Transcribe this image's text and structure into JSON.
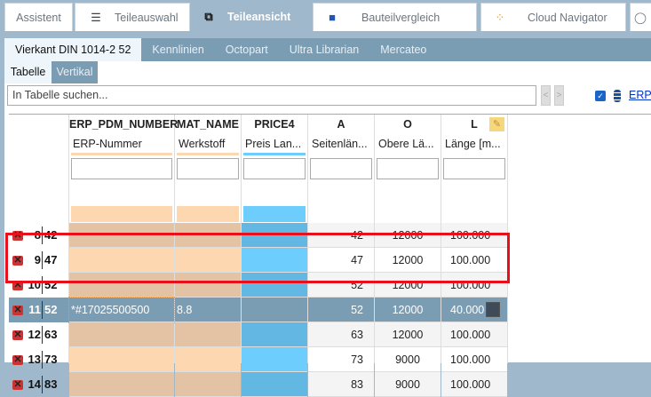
{
  "tabs": [
    {
      "label": "Assistent",
      "icon": ""
    },
    {
      "label": "Teileauswahl",
      "icon": "stack-icon"
    },
    {
      "label": "Teileansicht",
      "icon": "cubes-icon",
      "active": true
    },
    {
      "label": "Bauteilvergleich",
      "icon": "compare-icon"
    },
    {
      "label": "Cloud Navigator",
      "icon": "network-icon"
    }
  ],
  "subtabs": [
    "Vierkant DIN 1014-2 52",
    "Kennlinien",
    "Octopart",
    "Ultra Librarian",
    "Mercateo"
  ],
  "viewtabs": [
    "Tabelle",
    "Vertikal"
  ],
  "search": {
    "placeholder": "In Tabelle suchen..."
  },
  "nav": {
    "prev": "<",
    "next": ">"
  },
  "erp_link": "ERP-",
  "colors": {
    "accent": "#7b9db4",
    "selection_box": "#e8101a",
    "erp_col": "#fdd7b0",
    "price_col": "#6dcdfd"
  },
  "columns": [
    {
      "name": "ERP_PDM_NUMBER",
      "label": "ERP-Nummer"
    },
    {
      "name": "MAT_NAME",
      "label": "Werkstoff"
    },
    {
      "name": "PRICE4",
      "label": "Preis Lan..."
    },
    {
      "name": "A",
      "label": "Seitenlän..."
    },
    {
      "name": "O",
      "label": "Obere Lä..."
    },
    {
      "name": "L",
      "label": "Länge [m..."
    }
  ],
  "rows": [
    {
      "n": "8",
      "v": "42",
      "erp": "",
      "mat": "",
      "price": "",
      "a": "42",
      "o": "12000",
      "l": "100.000"
    },
    {
      "n": "9",
      "v": "47",
      "erp": "",
      "mat": "",
      "price": "",
      "a": "47",
      "o": "12000",
      "l": "100.000"
    },
    {
      "n": "10",
      "v": "52",
      "erp": "",
      "mat": "",
      "price": "",
      "a": "52",
      "o": "12000",
      "l": "100.000"
    },
    {
      "n": "11",
      "v": "52",
      "erp": "*#17025500500",
      "mat": "8.8",
      "price": "",
      "a": "52",
      "o": "12000",
      "l": "40.000",
      "selected": true,
      "locked": true
    },
    {
      "n": "12",
      "v": "63",
      "erp": "",
      "mat": "",
      "price": "",
      "a": "63",
      "o": "12000",
      "l": "100.000"
    },
    {
      "n": "13",
      "v": "73",
      "erp": "",
      "mat": "",
      "price": "",
      "a": "73",
      "o": "9000",
      "l": "100.000"
    },
    {
      "n": "14",
      "v": "83",
      "erp": "",
      "mat": "",
      "price": "",
      "a": "83",
      "o": "9000",
      "l": "100.000"
    }
  ]
}
